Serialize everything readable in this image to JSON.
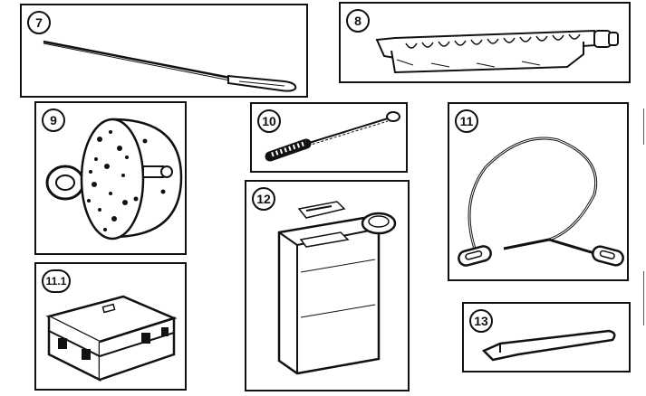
{
  "items": [
    {
      "id": "p7",
      "number": "7"
    },
    {
      "id": "p8",
      "number": "8"
    },
    {
      "id": "p9",
      "number": "9"
    },
    {
      "id": "p10",
      "number": "10"
    },
    {
      "id": "p11",
      "number": "11"
    },
    {
      "id": "p12",
      "number": "12"
    },
    {
      "id": "p111",
      "number": "11.1"
    },
    {
      "id": "p13",
      "number": "13"
    }
  ],
  "colors": {
    "ink": "#111111",
    "paper": "#ffffff"
  }
}
